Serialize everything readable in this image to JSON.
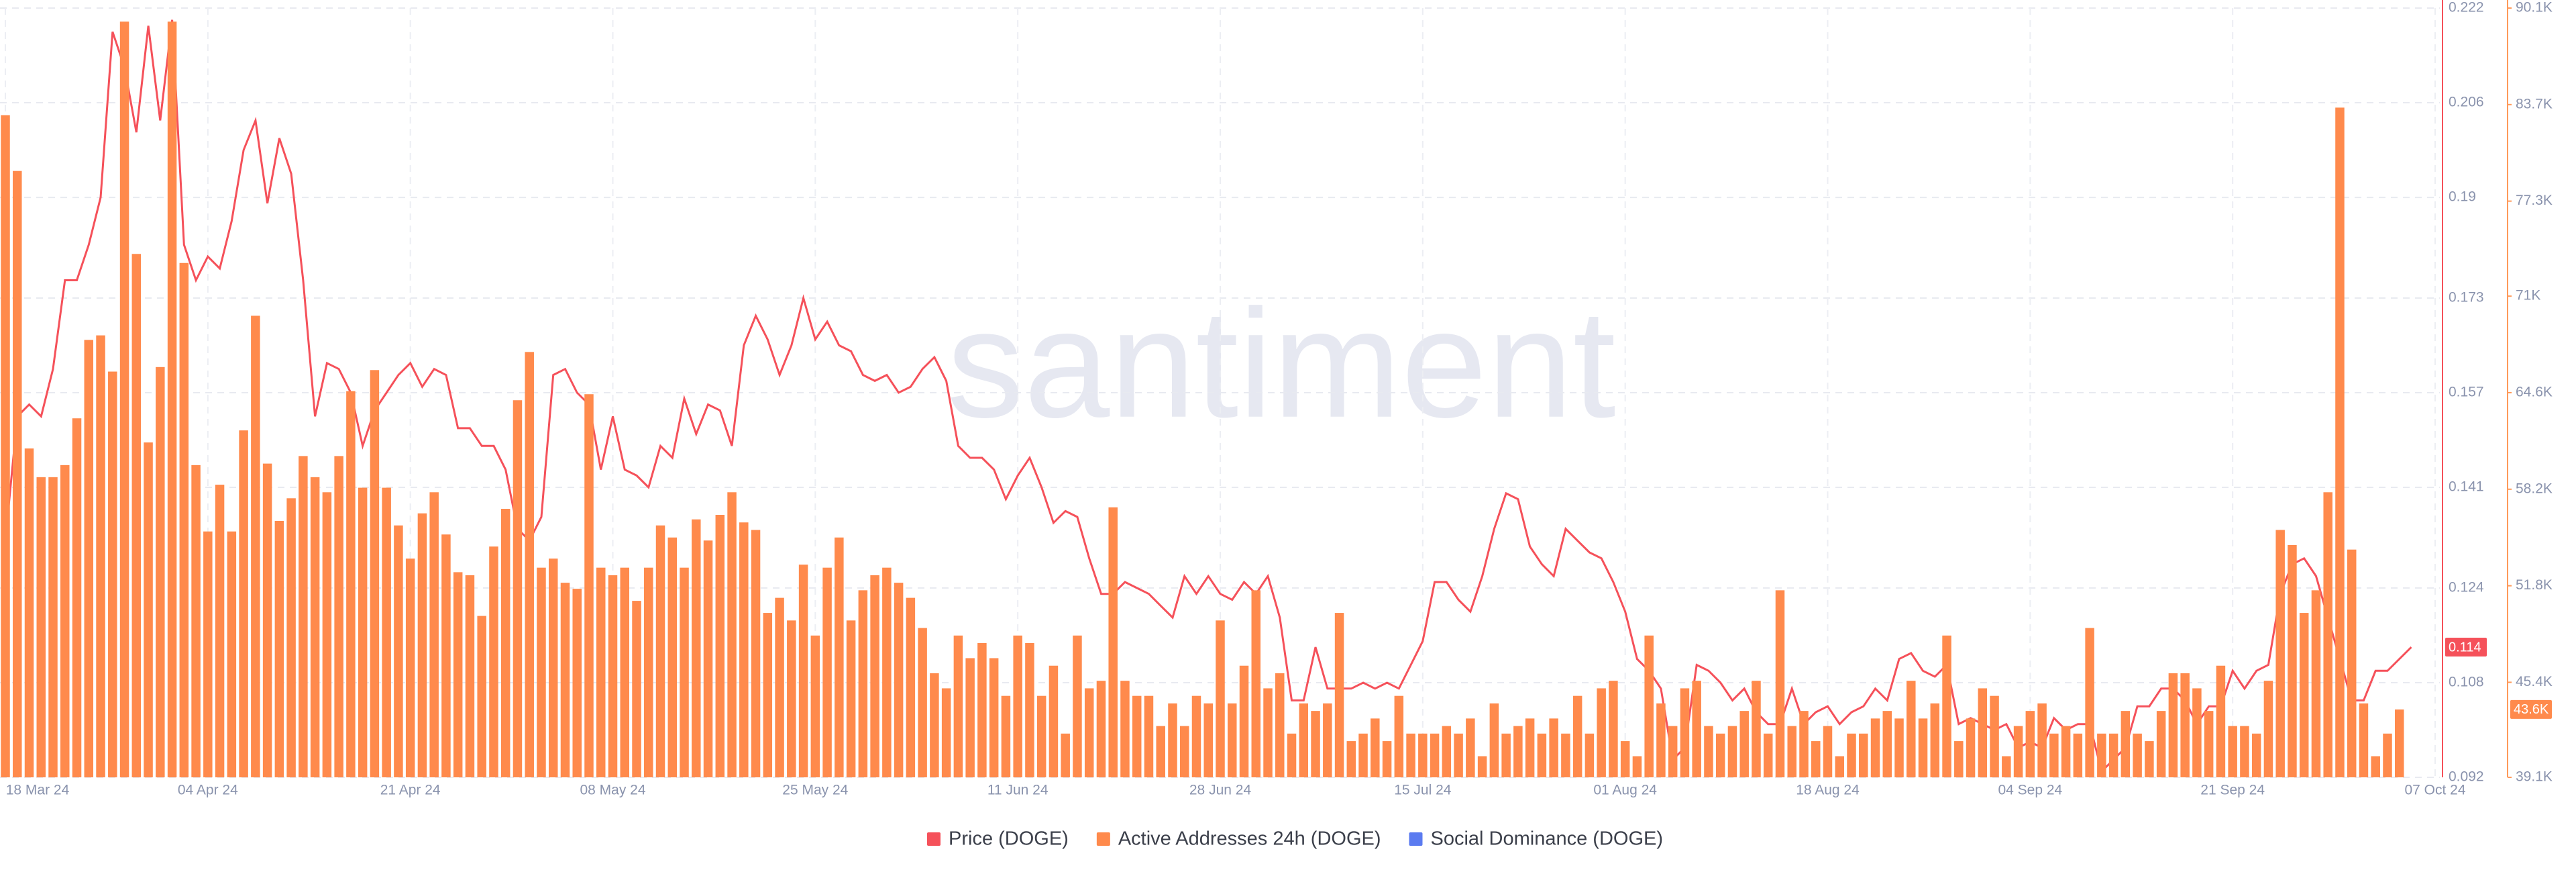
{
  "chart_data": {
    "type": "bar_line",
    "watermark": "santiment",
    "categories": [
      "18 Mar 24",
      null,
      null,
      null,
      null,
      null,
      null,
      null,
      null,
      null,
      null,
      null,
      null,
      null,
      null,
      null,
      null,
      "04 Apr 24",
      null,
      null,
      null,
      null,
      null,
      null,
      null,
      null,
      null,
      null,
      null,
      null,
      null,
      null,
      null,
      null,
      "21 Apr 24",
      null,
      null,
      null,
      null,
      null,
      null,
      null,
      null,
      null,
      null,
      null,
      null,
      null,
      null,
      null,
      null,
      "08 May 24",
      null,
      null,
      null,
      null,
      null,
      null,
      null,
      null,
      null,
      null,
      null,
      null,
      null,
      null,
      null,
      null,
      "25 May 24",
      null,
      null,
      null,
      null,
      null,
      null,
      null,
      null,
      null,
      null,
      null,
      null,
      null,
      null,
      null,
      null,
      "11 Jun 24",
      null,
      null,
      null,
      null,
      null,
      null,
      null,
      null,
      null,
      null,
      null,
      null,
      null,
      null,
      null,
      null,
      "28 Jun 24",
      null,
      null,
      null,
      null,
      null,
      null,
      null,
      null,
      null,
      null,
      null,
      null,
      null,
      null,
      null,
      null,
      "15 Jul 24",
      null,
      null,
      null,
      null,
      null,
      null,
      null,
      null,
      null,
      null,
      null,
      null,
      null,
      null,
      null,
      null,
      "01 Aug 24",
      null,
      null,
      null,
      null,
      null,
      null,
      null,
      null,
      null,
      null,
      null,
      null,
      null,
      null,
      null,
      null,
      "18 Aug 24",
      null,
      null,
      null,
      null,
      null,
      null,
      null,
      null,
      null,
      null,
      null,
      null,
      null,
      null,
      null,
      null,
      "04 Sep 24",
      null,
      null,
      null,
      null,
      null,
      null,
      null,
      null,
      null,
      null,
      null,
      null,
      null,
      null,
      null,
      null,
      "21 Sep 24",
      null,
      null,
      null,
      null,
      null,
      null,
      null,
      null,
      null,
      null,
      null,
      null,
      null,
      null,
      null,
      null,
      "07 Oct 24"
    ],
    "ylim": [
      0.092,
      0.222
    ],
    "yticks": [
      0.092,
      0.108,
      0.124,
      0.141,
      0.157,
      0.173,
      0.19,
      0.206,
      0.222
    ],
    "y2lim": [
      39100,
      90100
    ],
    "y2ticks": [
      {
        "value": 39100,
        "label": "39.1K"
      },
      {
        "value": 45400,
        "label": "45.4K"
      },
      {
        "value": 51800,
        "label": "51.8K"
      },
      {
        "value": 58200,
        "label": "58.2K"
      },
      {
        "value": 64600,
        "label": "64.6K"
      },
      {
        "value": 71000,
        "label": "71K"
      },
      {
        "value": 77300,
        "label": "77.3K"
      },
      {
        "value": 83700,
        "label": "83.7K"
      },
      {
        "value": 90100,
        "label": "90.1K"
      }
    ],
    "grid": true,
    "series": [
      {
        "name": "Price (DOGE)",
        "color": "#f5515a",
        "type": "line",
        "last_value_label": "0.114",
        "values": [
          0.132,
          0.153,
          0.155,
          0.153,
          0.161,
          0.176,
          0.176,
          0.182,
          0.19,
          0.218,
          0.212,
          0.201,
          0.219,
          0.203,
          0.22,
          0.182,
          0.176,
          0.18,
          0.178,
          0.186,
          0.198,
          0.203,
          0.189,
          0.2,
          0.194,
          0.176,
          0.153,
          0.162,
          0.161,
          0.157,
          0.148,
          0.154,
          0.157,
          0.16,
          0.162,
          0.158,
          0.161,
          0.16,
          0.151,
          0.151,
          0.148,
          0.148,
          0.144,
          0.134,
          0.132,
          0.136,
          0.16,
          0.161,
          0.157,
          0.155,
          0.144,
          0.153,
          0.144,
          0.143,
          0.141,
          0.148,
          0.146,
          0.156,
          0.15,
          0.155,
          0.154,
          0.148,
          0.165,
          0.17,
          0.166,
          0.16,
          0.165,
          0.173,
          0.166,
          0.169,
          0.165,
          0.164,
          0.16,
          0.159,
          0.16,
          0.157,
          0.158,
          0.161,
          0.163,
          0.159,
          0.148,
          0.146,
          0.146,
          0.144,
          0.139,
          0.143,
          0.146,
          0.141,
          0.135,
          0.137,
          0.136,
          0.129,
          0.123,
          0.123,
          0.125,
          0.124,
          0.123,
          0.121,
          0.119,
          0.126,
          0.123,
          0.126,
          0.123,
          0.122,
          0.125,
          0.123,
          0.126,
          0.119,
          0.105,
          0.105,
          0.114,
          0.107,
          0.107,
          0.107,
          0.108,
          0.107,
          0.108,
          0.107,
          0.111,
          0.115,
          0.125,
          0.125,
          0.122,
          0.12,
          0.126,
          0.134,
          0.14,
          0.139,
          0.131,
          0.128,
          0.126,
          0.134,
          0.132,
          0.13,
          0.129,
          0.125,
          0.12,
          0.112,
          0.11,
          0.107,
          0.095,
          0.097,
          0.111,
          0.11,
          0.108,
          0.105,
          0.107,
          0.103,
          0.101,
          0.101,
          0.107,
          0.101,
          0.103,
          0.104,
          0.101,
          0.103,
          0.104,
          0.107,
          0.105,
          0.112,
          0.113,
          0.11,
          0.109,
          0.111,
          0.101,
          0.102,
          0.101,
          0.1,
          0.101,
          0.097,
          0.098,
          0.097,
          0.102,
          0.1,
          0.101,
          0.101,
          0.093,
          0.095,
          0.097,
          0.104,
          0.104,
          0.107,
          0.107,
          0.105,
          0.101,
          0.104,
          0.104,
          0.11,
          0.107,
          0.11,
          0.111,
          0.123,
          0.128,
          0.129,
          0.126,
          0.119,
          0.112,
          0.105,
          0.105,
          0.11,
          0.11,
          0.112,
          0.114,
          null,
          null
        ]
      },
      {
        "name": "Active Addresses 24h (DOGE)",
        "color": "#ff8a4c",
        "type": "bar",
        "axis": "y2",
        "last_value_label": "43.6K",
        "values": [
          83000,
          79300,
          60900,
          59000,
          59000,
          59800,
          62900,
          68100,
          68400,
          66000,
          89200,
          73800,
          61300,
          66300,
          89200,
          73200,
          59800,
          55400,
          58500,
          55400,
          62100,
          69700,
          59900,
          56100,
          57600,
          60400,
          59000,
          58000,
          60400,
          64700,
          58300,
          66100,
          58300,
          55800,
          53600,
          56600,
          58000,
          55200,
          52700,
          52500,
          49800,
          54400,
          56900,
          64100,
          67300,
          53000,
          53600,
          52000,
          51600,
          64500,
          53000,
          52500,
          53000,
          50800,
          53000,
          55800,
          55000,
          53000,
          56200,
          54800,
          56500,
          58000,
          56000,
          55500,
          50000,
          51000,
          49500,
          53200,
          48500,
          53000,
          55000,
          49500,
          51500,
          52500,
          53000,
          52000,
          51000,
          49000,
          46000,
          45000,
          48500,
          47000,
          48000,
          47000,
          44500,
          48500,
          48000,
          44500,
          46500,
          42000,
          48500,
          45000,
          45500,
          57000,
          45500,
          44500,
          44500,
          42500,
          44000,
          42500,
          44500,
          44000,
          49500,
          44000,
          46500,
          51500,
          45000,
          46000,
          42000,
          44000,
          43500,
          44000,
          50000,
          41500,
          42000,
          43000,
          41500,
          44500,
          42000,
          42000,
          42000,
          42500,
          42000,
          43000,
          40500,
          44000,
          42000,
          42500,
          43000,
          42000,
          43000,
          42000,
          44500,
          42000,
          45000,
          45500,
          41500,
          40500,
          48500,
          44000,
          42500,
          45000,
          45500,
          42500,
          42000,
          42500,
          43500,
          45500,
          42000,
          51500,
          42500,
          43500,
          41500,
          42500,
          40500,
          42000,
          42000,
          43000,
          43500,
          43000,
          45500,
          43000,
          44000,
          48500,
          41500,
          43000,
          45000,
          44500,
          40500,
          42500,
          43500,
          44000,
          42000,
          42500,
          42000,
          49000,
          42000,
          42000,
          43500,
          42000,
          41500,
          43500,
          46000,
          46000,
          45000,
          43500,
          46500,
          42500,
          42500,
          42000,
          45500,
          55500,
          54500,
          50000,
          51500,
          58000,
          83500,
          54200,
          44000,
          40500,
          42000,
          43600,
          null,
          null,
          null
        ]
      },
      {
        "name": "Social Dominance (DOGE)",
        "color": "#5b7bf0",
        "type": "line"
      }
    ]
  }
}
